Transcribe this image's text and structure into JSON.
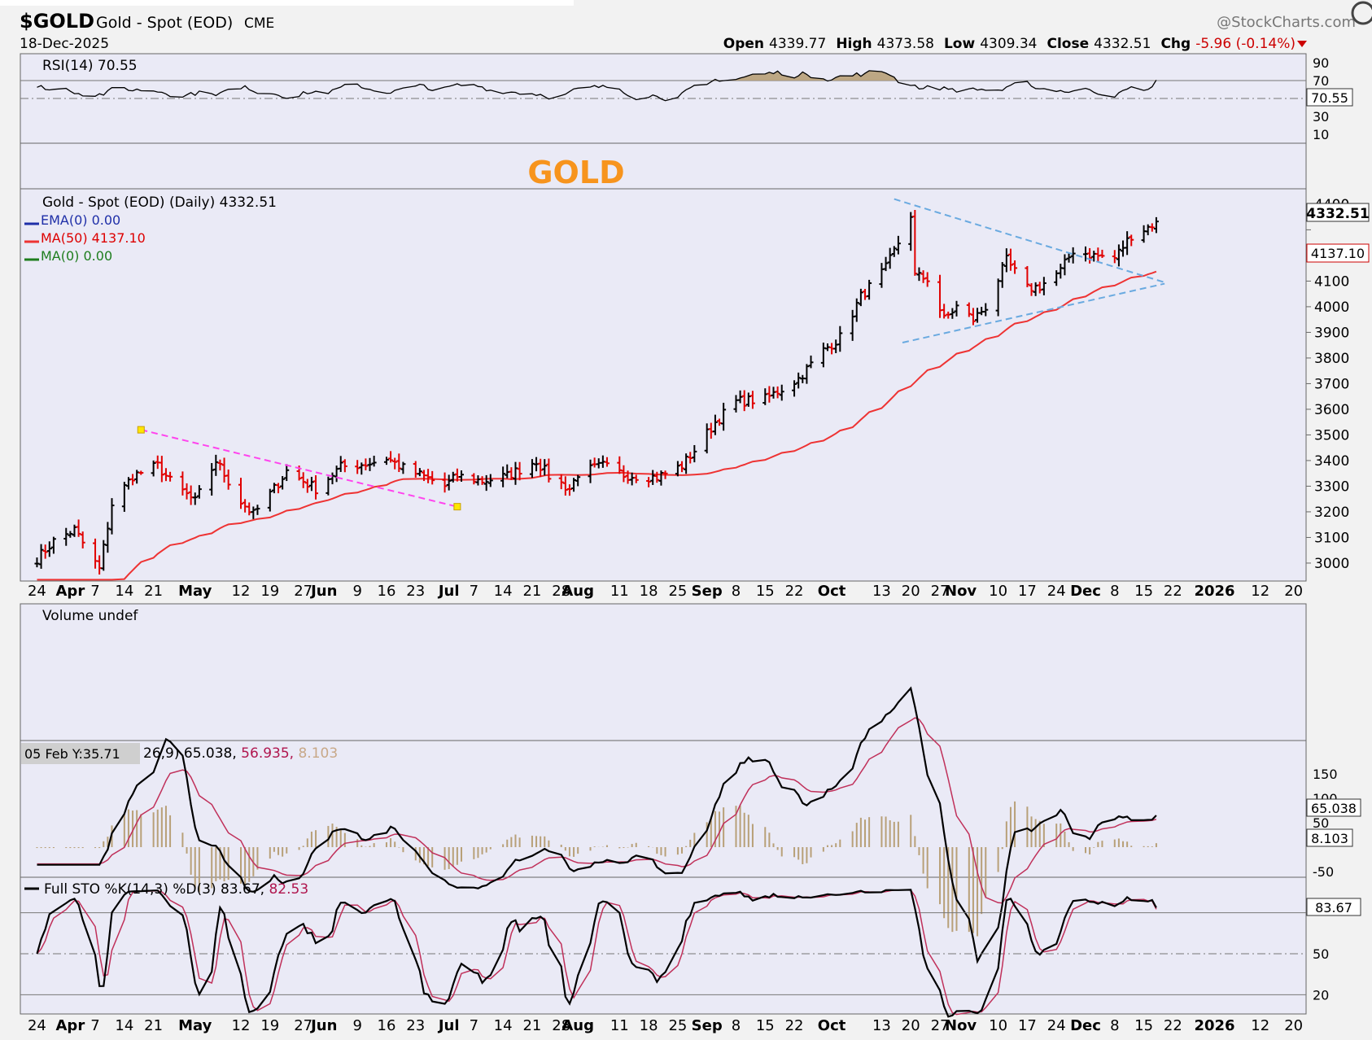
{
  "header": {
    "symbol": "$GOLD",
    "name": "Gold - Spot (EOD)",
    "exchange": "CME",
    "date": "18-Dec-2025",
    "watermark": "@StockCharts.com",
    "open_label": "Open",
    "open": "4339.77",
    "high_label": "High",
    "high": "4373.58",
    "low_label": "Low",
    "low": "4309.34",
    "close_label": "Close",
    "close": "4332.51",
    "chg_label": "Chg",
    "chg": "-5.96 (-0.14%)"
  },
  "panels": {
    "rsi": {
      "legend": "RSI(14) 70.55",
      "value_tag": "70.55"
    },
    "title_text": "GOLD",
    "price": {
      "legend": "Gold - Spot (EOD) (Daily) 4332.51",
      "ema_legend": "EMA(0) 0.00",
      "ma50_legend": "MA(50) 4137.10",
      "ma0_legend": "MA(0) 0.00",
      "last_tag": "4332.51",
      "ma_tag": "4137.10"
    },
    "volume": {
      "legend": "Volume undef"
    },
    "macd": {
      "tooltip": "05 Feb Y:35.71",
      "legend_a": "26,9) 65.038,",
      "legend_b": " 56.935,",
      "legend_c": " 8.103",
      "tag_macd": "65.038",
      "tag_hist": "8.103"
    },
    "sto": {
      "legend": "Full STO %K(14,3) %D(3) 83.67,",
      "legend_d": " 82.53",
      "tag": "83.67"
    }
  },
  "colors": {
    "up": "#000000",
    "down": "#e00000",
    "ma50": "#ee3333",
    "trend_magenta": "#ff44ee",
    "trend_blue": "#6aaae0",
    "rsi_fill": "#b8a078",
    "hist": "#b8a078",
    "title": "#f7941d",
    "plot_bg": "#eaeaf6"
  },
  "chart_data": {
    "type": "line",
    "ohlc_last": {
      "date": "2025-12-18",
      "open": 4339.77,
      "high": 4373.58,
      "low": 4309.34,
      "close": 4332.51
    },
    "close_series": [
      [
        "2025-03-24",
        3018
      ],
      [
        "2025-03-28",
        3085
      ],
      [
        "2025-04-02",
        3130
      ],
      [
        "2025-04-08",
        2975
      ],
      [
        "2025-04-11",
        3230
      ],
      [
        "2025-04-16",
        3340
      ],
      [
        "2025-04-22",
        3380
      ],
      [
        "2025-04-25",
        3320
      ],
      [
        "2025-05-01",
        3240
      ],
      [
        "2025-05-06",
        3400
      ],
      [
        "2025-05-12",
        3240
      ],
      [
        "2025-05-15",
        3190
      ],
      [
        "2025-05-20",
        3290
      ],
      [
        "2025-05-23",
        3360
      ],
      [
        "2025-05-30",
        3290
      ],
      [
        "2025-06-05",
        3375
      ],
      [
        "2025-06-12",
        3390
      ],
      [
        "2025-06-16",
        3410
      ],
      [
        "2025-06-20",
        3370
      ],
      [
        "2025-06-26",
        3330
      ],
      [
        "2025-06-30",
        3300
      ],
      [
        "2025-07-03",
        3340
      ],
      [
        "2025-07-09",
        3320
      ],
      [
        "2025-07-15",
        3340
      ],
      [
        "2025-07-22",
        3400
      ],
      [
        "2025-07-25",
        3340
      ],
      [
        "2025-07-30",
        3290
      ],
      [
        "2025-08-01",
        3350
      ],
      [
        "2025-08-07",
        3380
      ],
      [
        "2025-08-12",
        3345
      ],
      [
        "2025-08-20",
        3335
      ],
      [
        "2025-08-26",
        3380
      ],
      [
        "2025-08-29",
        3440
      ],
      [
        "2025-09-03",
        3550
      ],
      [
        "2025-09-08",
        3630
      ],
      [
        "2025-09-15",
        3640
      ],
      [
        "2025-09-19",
        3680
      ],
      [
        "2025-09-23",
        3720
      ],
      [
        "2025-09-29",
        3830
      ],
      [
        "2025-10-03",
        3880
      ],
      [
        "2025-10-08",
        4040
      ],
      [
        "2025-10-14",
        4150
      ],
      [
        "2025-10-17",
        4250
      ],
      [
        "2025-10-20",
        4360
      ],
      [
        "2025-10-21",
        4120
      ],
      [
        "2025-10-24",
        4110
      ],
      [
        "2025-10-28",
        3950
      ],
      [
        "2025-10-31",
        4000
      ],
      [
        "2025-11-04",
        3950
      ],
      [
        "2025-11-07",
        4000
      ],
      [
        "2025-11-12",
        4180
      ],
      [
        "2025-11-17",
        4070
      ],
      [
        "2025-11-20",
        4080
      ],
      [
        "2025-11-25",
        4140
      ],
      [
        "2025-11-28",
        4220
      ],
      [
        "2025-12-03",
        4200
      ],
      [
        "2025-12-08",
        4190
      ],
      [
        "2025-12-12",
        4280
      ],
      [
        "2025-12-16",
        4310
      ],
      [
        "2025-12-18",
        4332.51
      ]
    ],
    "ma50_last": 4137.1,
    "ylim": [
      2930,
      4460
    ],
    "y_ticks": [
      3000,
      3100,
      3200,
      3300,
      3400,
      3500,
      3600,
      3700,
      3800,
      3900,
      4000,
      4100,
      4200,
      4300,
      4400
    ],
    "y_tick_labels": [
      "3000",
      "3100",
      "3200",
      "3300",
      "3400",
      "3500",
      "3600",
      "3700",
      "3800",
      "3900",
      "4000",
      "4100",
      "4200",
      "",
      "4400"
    ],
    "rsi_ticks": [
      "90",
      "70",
      "50",
      "30",
      "10"
    ],
    "macd_ticks": [
      "150",
      "100",
      "50",
      "-50"
    ],
    "sto_ticks": [
      "80",
      "50",
      "20"
    ],
    "sto_tick_labels": [
      "",
      "50",
      "20"
    ],
    "x_labels": [
      {
        "t": "24",
        "d": "2025-03-24"
      },
      {
        "t": "Apr",
        "d": "2025-04-01",
        "bold": true
      },
      {
        "t": "7",
        "d": "2025-04-07"
      },
      {
        "t": "14",
        "d": "2025-04-14"
      },
      {
        "t": "21",
        "d": "2025-04-21"
      },
      {
        "t": "May",
        "d": "2025-05-01",
        "bold": true
      },
      {
        "t": "12",
        "d": "2025-05-12"
      },
      {
        "t": "19",
        "d": "2025-05-19"
      },
      {
        "t": "27",
        "d": "2025-05-27"
      },
      {
        "t": "Jun",
        "d": "2025-06-01",
        "bold": true
      },
      {
        "t": "9",
        "d": "2025-06-09"
      },
      {
        "t": "16",
        "d": "2025-06-16"
      },
      {
        "t": "23",
        "d": "2025-06-23"
      },
      {
        "t": "Jul",
        "d": "2025-07-01",
        "bold": true
      },
      {
        "t": "7",
        "d": "2025-07-07"
      },
      {
        "t": "14",
        "d": "2025-07-14"
      },
      {
        "t": "21",
        "d": "2025-07-21"
      },
      {
        "t": "28",
        "d": "2025-07-28"
      },
      {
        "t": "Aug",
        "d": "2025-08-01",
        "bold": true
      },
      {
        "t": "11",
        "d": "2025-08-11"
      },
      {
        "t": "18",
        "d": "2025-08-18"
      },
      {
        "t": "25",
        "d": "2025-08-25"
      },
      {
        "t": "Sep",
        "d": "2025-09-01",
        "bold": true
      },
      {
        "t": "8",
        "d": "2025-09-08"
      },
      {
        "t": "15",
        "d": "2025-09-15"
      },
      {
        "t": "22",
        "d": "2025-09-22"
      },
      {
        "t": "Oct",
        "d": "2025-10-01",
        "bold": true
      },
      {
        "t": "13",
        "d": "2025-10-13"
      },
      {
        "t": "20",
        "d": "2025-10-20"
      },
      {
        "t": "27",
        "d": "2025-10-27"
      },
      {
        "t": "Nov",
        "d": "2025-11-01",
        "bold": true
      },
      {
        "t": "10",
        "d": "2025-11-10"
      },
      {
        "t": "17",
        "d": "2025-11-17"
      },
      {
        "t": "24",
        "d": "2025-11-24"
      },
      {
        "t": "Dec",
        "d": "2025-12-01",
        "bold": true
      },
      {
        "t": "8",
        "d": "2025-12-08"
      },
      {
        "t": "15",
        "d": "2025-12-15"
      },
      {
        "t": "22",
        "d": "2025-12-22"
      },
      {
        "t": "2026",
        "d": "2026-01-01",
        "bold": true
      },
      {
        "t": "12",
        "d": "2026-01-12"
      },
      {
        "t": "20",
        "d": "2026-01-20"
      }
    ],
    "x_range": [
      "2025-03-20",
      "2026-01-23"
    ]
  }
}
